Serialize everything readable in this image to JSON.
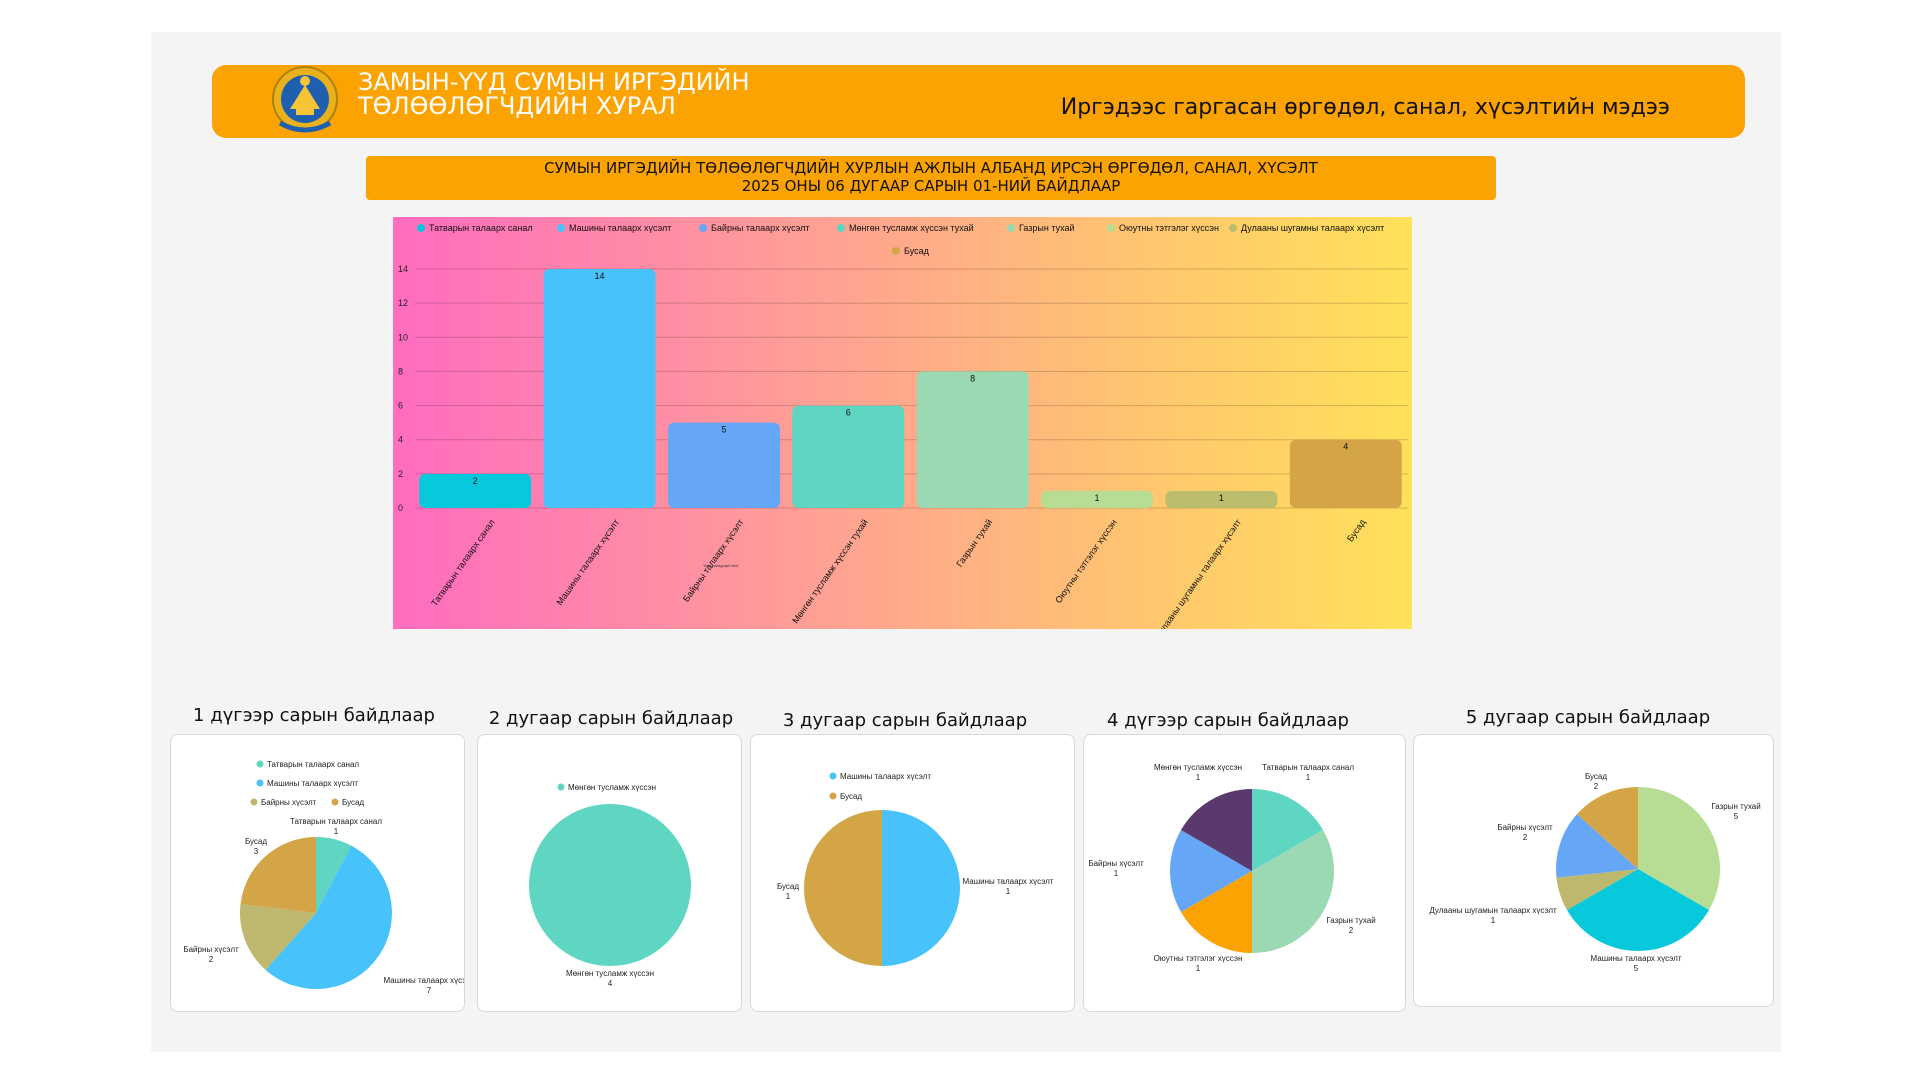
{
  "header": {
    "org_line1": "ЗАМЫН-ҮҮД СУМЫН ИРГЭДИЙН",
    "org_line2": "ТӨЛӨӨЛӨГЧДИЙН ХУРАЛ",
    "right_title": "Иргэдээс гаргасан өргөдөл, санал, хүсэлтийн мэдээ",
    "emblem_icon": "mongolia-state-emblem-icon"
  },
  "subtitle": {
    "line1": "СУМЫН ИРГЭДИЙН ТӨЛӨӨЛӨГЧДИЙН ХУРЛЫН АЖЛЫН АЛБАНД ИРСЭН ӨРГӨДӨЛ, САНАЛ, ХҮСЭЛТ",
    "line2": "2025 ОНЫ 06 ДУГААР САРЫН 01-НИЙ БАЙДЛААР"
  },
  "colors": {
    "accent": "#fca304",
    "gradient": [
      "#ff6cc0",
      "#ff9e96",
      "#ffc76e",
      "#ffe15a"
    ]
  },
  "chart_data": [
    {
      "type": "bar",
      "categories": [
        "Татварын талаарх санал",
        "Машины талаарх хүсэлт",
        "Байрны талаарх хүсэлт",
        "Мөнгөн тусламж хүссэн тухай",
        "Газрын тухай",
        "Оюутны тэтгэлэг хүссэн",
        "Дулааны шугамны талаарх хүсэлт",
        "Бусад"
      ],
      "values": [
        2,
        14,
        5,
        6,
        8,
        1,
        1,
        4
      ],
      "colors": [
        "#08c8dc",
        "#48c2fb",
        "#66a6f7",
        "#5fd6c2",
        "#9ad9b2",
        "#b6dd93",
        "#bcbd6c",
        "#d4a546"
      ],
      "legend": [
        "Татварын талаарх санал",
        "Машины талаарх хүсэлт",
        "Байрны талаарх хүсэлт",
        "Мөнгөн тусламж хүссэн тухай",
        "Газрын тухай",
        "Оюутны тэтгэлэг хүссэн",
        "Дулааны шугамны талаарх хүсэлт",
        "Бусад"
      ],
      "legend_position": "top",
      "yticks": [
        0,
        2,
        4,
        6,
        8,
        10,
        12,
        14
      ],
      "ylim": [
        0,
        14
      ],
      "grid": true,
      "annotation": "Your paragraph text"
    },
    {
      "type": "pie",
      "title": "1 дүгээр сарын байдлаар",
      "legend": [
        "Татварын талаарх санал",
        "Машины талаарх хүсэлт",
        "Байрны хүсэлт",
        "Бусад"
      ],
      "legend_colors": [
        "#5fd6c2",
        "#48c2fb",
        "#bdb86e",
        "#d4a546"
      ],
      "slices": [
        {
          "label": "Татварын талаарх санал",
          "value": 1,
          "color": "#5fd6c2"
        },
        {
          "label": "Машины талаарх хүсэлт",
          "value": 7,
          "color": "#48c2fb"
        },
        {
          "label": "Байрны хүсэлт",
          "value": 2,
          "color": "#bdb86e"
        },
        {
          "label": "Бусад",
          "value": 3,
          "color": "#d4a546"
        }
      ]
    },
    {
      "type": "pie",
      "title": "2 дугаар сарын байдлаар",
      "legend": [
        "Мөнгөн тусламж хүссэн"
      ],
      "legend_colors": [
        "#5fd6c2"
      ],
      "slices": [
        {
          "label": "Мөнгөн тусламж хүссэн",
          "value": 4,
          "color": "#5fd6c2"
        }
      ]
    },
    {
      "type": "pie",
      "title": "3 дугаар сарын байдлаар",
      "legend": [
        "Машины талаарх хүсэлт",
        "Бусад"
      ],
      "legend_colors": [
        "#48c2fb",
        "#d4a546"
      ],
      "slices": [
        {
          "label": "Машины талаарх хүсэлт",
          "value": 1,
          "color": "#48c2fb"
        },
        {
          "label": "Бусад",
          "value": 1,
          "color": "#d4a546"
        }
      ]
    },
    {
      "type": "pie",
      "title": "4 дүгээр сарын байдлаар",
      "legend": [],
      "legend_colors": [],
      "slices": [
        {
          "label": "Татварын талаарх санал",
          "value": 1,
          "color": "#5fd6c2"
        },
        {
          "label": "Газрын тухай",
          "value": 2,
          "color": "#9ad9b2"
        },
        {
          "label": "Оюутны тэтгэлэг хүссэн",
          "value": 1,
          "color": "#fca304"
        },
        {
          "label": "Байрны хүсэлт",
          "value": 1,
          "color": "#66a6f7"
        },
        {
          "label": "Мөнгөн тусламж хүссэн",
          "value": 1,
          "color": "#5a3a6e"
        }
      ]
    },
    {
      "type": "pie",
      "title": "5 дугаар сарын байдлаар",
      "legend": [],
      "legend_colors": [],
      "slices": [
        {
          "label": "Газрын тухай",
          "value": 5,
          "color": "#b6dd93"
        },
        {
          "label": "Машины талаарх хүсэлт",
          "value": 5,
          "color": "#08c8dc"
        },
        {
          "label": "Дулааны шугамын талаарх хүсэлт",
          "value": 1,
          "color": "#bdb86e"
        },
        {
          "label": "Байрны хүсэлт",
          "value": 2,
          "color": "#66a6f7"
        },
        {
          "label": "Бусад",
          "value": 2,
          "color": "#d4a546"
        }
      ]
    }
  ]
}
